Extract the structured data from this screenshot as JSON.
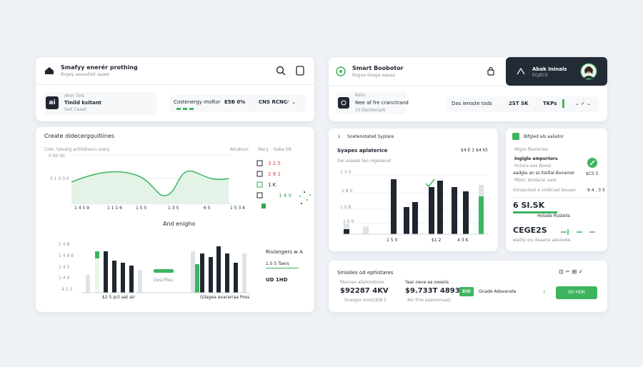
{
  "left": {
    "header": {
      "title": "Smafyy enerér prothing",
      "subtitle": "Bvgey aaaadiatr aaaer"
    },
    "profile": {
      "icon": "ai",
      "label": "Ahor Tiris",
      "name": "Tinild ksitant",
      "note": "Seit Ceaat"
    },
    "stat": {
      "label": "Costenergy moftor",
      "value": "E5B 0%",
      "code": "CNS RCNC"
    },
    "trend": {
      "title": "Create didecergquitiines",
      "subtitle": "Cres. talvarg antilidiiaics arery",
      "legend": [
        "Alcabiun",
        "Mary",
        "Kaba 5B"
      ],
      "y_labels": [
        "0.S0 00",
        "3 1 0 0 0"
      ],
      "x_labels": [
        "1 4 5 9",
        "1 1 1 6",
        "1 5 5",
        "1 3 5",
        "6 5",
        "1 5 3 4"
      ],
      "list": [
        "3 2 5",
        "2 9 1",
        "1 K",
        "1 4 V"
      ]
    },
    "section_title": "And enigho",
    "bars": {
      "y_labels": [
        "1 4 8",
        "1 4 8 9",
        "1 4 5",
        "1 4 9",
        "4 2 3"
      ],
      "caption_a": "$2 5 pct aat air",
      "middle": "Descfiles",
      "caption_b": "Gilagea avararraa Poss",
      "side": [
        "Rivlangers w A",
        "1.5 5 Taers",
        "UD 1HD"
      ]
    }
  },
  "right": {
    "header": {
      "title": "Smart Boobotor",
      "subtitle": "Bagaa daaga aaaaa"
    },
    "account": {
      "name": "Abak Ininals",
      "sub": "EGJECE"
    },
    "profile": {
      "label": "Kolis",
      "name": "Nee af fre cranctrand",
      "note": "10 Danbenark"
    },
    "stat": {
      "label": "Das ieroste tods",
      "value": "2ST SK",
      "code": "TKPs"
    },
    "chart": {
      "title": "Snetenotated Syplare",
      "heading": "Syapes aplaterice",
      "total": "$4 E 1 $4 k5",
      "subtitle": "Dei assese teo regesecet",
      "y_labels": [
        "1 3 0",
        "1 8 0",
        "1 5 8",
        "1 0 0"
      ],
      "x_labels": [
        "1 5 0",
        "$1 2",
        "4 3 K"
      ]
    },
    "side": {
      "title": "Bifgled als aaliator",
      "sub": "Migre fbeoscles",
      "item": "Ingigle emportors",
      "lines": [
        "Hcloce aes Boest",
        "aadgla an ss tisitlal Bxxainer",
        "Mbicr atodarar aeel",
        "Ioinsecleat e ondiciad beuaer"
      ],
      "values": [
        "$CS 5",
        "9 4 . 3 5"
      ],
      "big": "6 SI.SK",
      "big_note": "Holade Rsstelis",
      "code": "CEGE2S",
      "code_note": "waitly ois doaane aetalebe"
    },
    "summary": {
      "title": "Smisiles od ephistares",
      "a_label": "Masvee aliemodores",
      "a_value": "$92287 4KV",
      "a_note": "Snaagie sore|(8)8 5",
      "b_label": "Yaar neve ea oxeeiis",
      "b_value": "$9.733T 4893",
      "b_note": "Ain tlne aaaioonuad",
      "chip": "EIO",
      "chip_note": "Gnade Adaverate",
      "button": "SO HDR"
    }
  }
}
